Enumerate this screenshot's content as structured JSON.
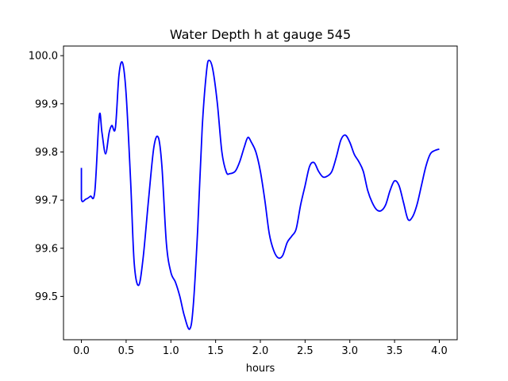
{
  "chart_data": {
    "type": "line",
    "title": "Water Depth h at gauge 545",
    "xlabel": "hours",
    "ylabel": "",
    "xlim": [
      -0.2,
      4.2
    ],
    "ylim": [
      99.41,
      100.02
    ],
    "xticks": [
      0.0,
      0.5,
      1.0,
      1.5,
      2.0,
      2.5,
      3.0,
      3.5,
      4.0
    ],
    "xtick_labels": [
      "0.0",
      "0.5",
      "1.0",
      "1.5",
      "2.0",
      "2.5",
      "3.0",
      "3.5",
      "4.0"
    ],
    "yticks": [
      99.5,
      99.6,
      99.7,
      99.8,
      99.9,
      100.0
    ],
    "ytick_labels": [
      "99.5",
      "99.6",
      "99.7",
      "99.8",
      "99.9",
      "100.0"
    ],
    "grid": false,
    "series": [
      {
        "color": "#0000ff",
        "points": [
          [
            0.0,
            99.767
          ],
          [
            0.0,
            99.702
          ],
          [
            0.05,
            99.702
          ],
          [
            0.1,
            99.708
          ],
          [
            0.15,
            99.718
          ],
          [
            0.2,
            99.875
          ],
          [
            0.23,
            99.84
          ],
          [
            0.27,
            99.796
          ],
          [
            0.31,
            99.84
          ],
          [
            0.34,
            99.855
          ],
          [
            0.38,
            99.85
          ],
          [
            0.42,
            99.96
          ],
          [
            0.46,
            99.985
          ],
          [
            0.5,
            99.92
          ],
          [
            0.55,
            99.74
          ],
          [
            0.59,
            99.57
          ],
          [
            0.64,
            99.523
          ],
          [
            0.69,
            99.58
          ],
          [
            0.75,
            99.7
          ],
          [
            0.81,
            99.81
          ],
          [
            0.86,
            99.83
          ],
          [
            0.9,
            99.77
          ],
          [
            0.95,
            99.61
          ],
          [
            1.0,
            99.55
          ],
          [
            1.05,
            99.53
          ],
          [
            1.1,
            99.5
          ],
          [
            1.15,
            99.46
          ],
          [
            1.21,
            99.432
          ],
          [
            1.25,
            99.48
          ],
          [
            1.3,
            99.64
          ],
          [
            1.35,
            99.85
          ],
          [
            1.4,
            99.97
          ],
          [
            1.43,
            99.99
          ],
          [
            1.47,
            99.97
          ],
          [
            1.52,
            99.9
          ],
          [
            1.57,
            99.8
          ],
          [
            1.62,
            99.758
          ],
          [
            1.66,
            99.755
          ],
          [
            1.72,
            99.76
          ],
          [
            1.77,
            99.78
          ],
          [
            1.82,
            99.81
          ],
          [
            1.86,
            99.83
          ],
          [
            1.9,
            99.82
          ],
          [
            1.95,
            99.8
          ],
          [
            2.0,
            99.76
          ],
          [
            2.05,
            99.7
          ],
          [
            2.1,
            99.63
          ],
          [
            2.15,
            99.595
          ],
          [
            2.2,
            99.58
          ],
          [
            2.25,
            99.585
          ],
          [
            2.3,
            99.612
          ],
          [
            2.35,
            99.625
          ],
          [
            2.4,
            99.64
          ],
          [
            2.45,
            99.69
          ],
          [
            2.5,
            99.73
          ],
          [
            2.55,
            99.77
          ],
          [
            2.6,
            99.778
          ],
          [
            2.65,
            99.76
          ],
          [
            2.7,
            99.748
          ],
          [
            2.75,
            99.75
          ],
          [
            2.8,
            99.76
          ],
          [
            2.85,
            99.79
          ],
          [
            2.9,
            99.825
          ],
          [
            2.95,
            99.835
          ],
          [
            3.0,
            99.82
          ],
          [
            3.05,
            99.795
          ],
          [
            3.1,
            99.78
          ],
          [
            3.15,
            99.76
          ],
          [
            3.2,
            99.72
          ],
          [
            3.25,
            99.695
          ],
          [
            3.3,
            99.68
          ],
          [
            3.35,
            99.678
          ],
          [
            3.4,
            99.69
          ],
          [
            3.45,
            99.72
          ],
          [
            3.5,
            99.74
          ],
          [
            3.55,
            99.73
          ],
          [
            3.6,
            99.695
          ],
          [
            3.65,
            99.66
          ],
          [
            3.7,
            99.665
          ],
          [
            3.75,
            99.69
          ],
          [
            3.8,
            99.73
          ],
          [
            3.85,
            99.77
          ],
          [
            3.9,
            99.796
          ],
          [
            3.95,
            99.803
          ],
          [
            4.0,
            99.806
          ]
        ]
      }
    ]
  }
}
